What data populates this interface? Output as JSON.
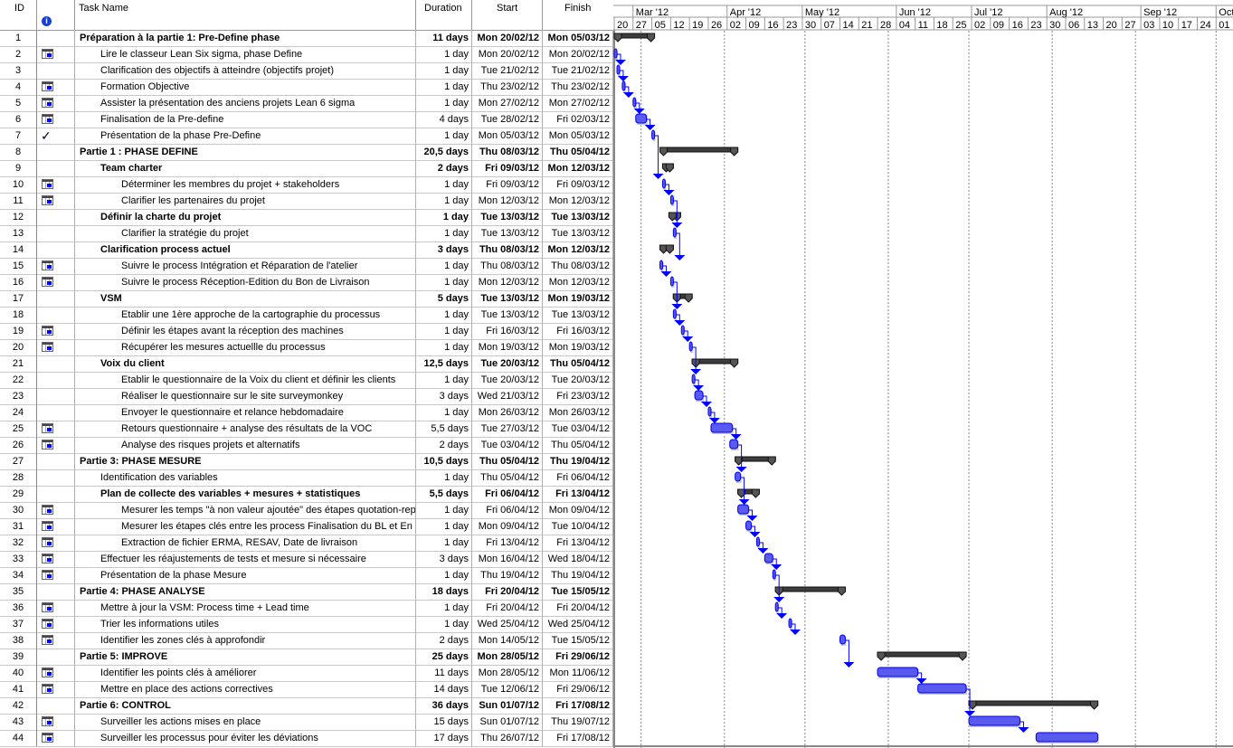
{
  "headers": {
    "id": "ID",
    "info": "i",
    "name": "Task Name",
    "duration": "Duration",
    "start": "Start",
    "finish": "Finish"
  },
  "timescale": {
    "months": [
      "Mar '12",
      "Apr '12",
      "May '12",
      "Jun '12",
      "Jul '12",
      "Aug '12",
      "Sep '12",
      "Oct '"
    ],
    "weeks": [
      "20",
      "27",
      "05",
      "12",
      "19",
      "26",
      "02",
      "09",
      "16",
      "23",
      "30",
      "07",
      "14",
      "21",
      "28",
      "04",
      "11",
      "18",
      "25",
      "02",
      "09",
      "16",
      "23",
      "30",
      "06",
      "13",
      "20",
      "27",
      "03",
      "10",
      "17",
      "24",
      "01"
    ]
  },
  "colors": {
    "task": "#3a3ae8",
    "summary": "#3c3c3c",
    "link": "#0000ff"
  },
  "tasks": [
    {
      "id": "1",
      "icon": "",
      "name": "Préparation à la partie 1: Pre-Define phase",
      "level": 0,
      "summary": true,
      "duration": "11 days",
      "start": "Mon 20/02/12",
      "finish": "Mon 05/03/12"
    },
    {
      "id": "2",
      "icon": "calendar",
      "name": "Lire le classeur Lean Six sigma, phase Define",
      "level": 1,
      "summary": false,
      "duration": "1 day",
      "start": "Mon 20/02/12",
      "finish": "Mon 20/02/12"
    },
    {
      "id": "3",
      "icon": "",
      "name": "Clarification des objectifs à atteindre (objectifs projet)",
      "level": 1,
      "summary": false,
      "duration": "1 day",
      "start": "Tue 21/02/12",
      "finish": "Tue 21/02/12"
    },
    {
      "id": "4",
      "icon": "calendar",
      "name": "Formation Objective",
      "level": 1,
      "summary": false,
      "duration": "1 day",
      "start": "Thu 23/02/12",
      "finish": "Thu 23/02/12"
    },
    {
      "id": "5",
      "icon": "calendar",
      "name": "Assister la présentation des anciens projets Lean 6 sigma",
      "level": 1,
      "summary": false,
      "duration": "1 day",
      "start": "Mon 27/02/12",
      "finish": "Mon 27/02/12"
    },
    {
      "id": "6",
      "icon": "calendar",
      "name": "Finalisation de la Pre-define",
      "level": 1,
      "summary": false,
      "duration": "4 days",
      "start": "Tue 28/02/12",
      "finish": "Fri 02/03/12"
    },
    {
      "id": "7",
      "icon": "check",
      "name": "Présentation de la phase Pre-Define",
      "level": 1,
      "summary": false,
      "duration": "1 day",
      "start": "Mon 05/03/12",
      "finish": "Mon 05/03/12"
    },
    {
      "id": "8",
      "icon": "",
      "name": "Partie 1 : PHASE DEFINE",
      "level": 0,
      "summary": true,
      "duration": "20,5 days",
      "start": "Thu 08/03/12",
      "finish": "Thu 05/04/12"
    },
    {
      "id": "9",
      "icon": "",
      "name": "Team charter",
      "level": 1,
      "summary": true,
      "duration": "2 days",
      "start": "Fri 09/03/12",
      "finish": "Mon 12/03/12"
    },
    {
      "id": "10",
      "icon": "calendar",
      "name": "Déterminer les membres du projet + stakeholders",
      "level": 2,
      "summary": false,
      "duration": "1 day",
      "start": "Fri 09/03/12",
      "finish": "Fri 09/03/12"
    },
    {
      "id": "11",
      "icon": "calendar",
      "name": "Clarifier les partenaires du projet",
      "level": 2,
      "summary": false,
      "duration": "1 day",
      "start": "Mon 12/03/12",
      "finish": "Mon 12/03/12"
    },
    {
      "id": "12",
      "icon": "",
      "name": "Définir la charte du projet",
      "level": 1,
      "summary": true,
      "duration": "1 day",
      "start": "Tue 13/03/12",
      "finish": "Tue 13/03/12"
    },
    {
      "id": "13",
      "icon": "",
      "name": "Clarifier la stratégie du projet",
      "level": 2,
      "summary": false,
      "duration": "1 day",
      "start": "Tue 13/03/12",
      "finish": "Tue 13/03/12"
    },
    {
      "id": "14",
      "icon": "",
      "name": "Clarification process actuel",
      "level": 1,
      "summary": true,
      "duration": "3 days",
      "start": "Thu 08/03/12",
      "finish": "Mon 12/03/12"
    },
    {
      "id": "15",
      "icon": "calendar",
      "name": "Suivre le  process Intégration et Réparation de l'atelier",
      "level": 2,
      "summary": false,
      "duration": "1 day",
      "start": "Thu 08/03/12",
      "finish": "Thu 08/03/12"
    },
    {
      "id": "16",
      "icon": "calendar",
      "name": "Suivre le process Réception-Edition du Bon de Livraison",
      "level": 2,
      "summary": false,
      "duration": "1 day",
      "start": "Mon 12/03/12",
      "finish": "Mon 12/03/12"
    },
    {
      "id": "17",
      "icon": "",
      "name": "VSM",
      "level": 1,
      "summary": true,
      "duration": "5 days",
      "start": "Tue 13/03/12",
      "finish": "Mon 19/03/12"
    },
    {
      "id": "18",
      "icon": "",
      "name": "Etablir une 1ère approche de la cartographie du processus",
      "level": 2,
      "summary": false,
      "duration": "1 day",
      "start": "Tue 13/03/12",
      "finish": "Tue 13/03/12"
    },
    {
      "id": "19",
      "icon": "calendar",
      "name": "Définir les étapes avant la réception des machines",
      "level": 2,
      "summary": false,
      "duration": "1 day",
      "start": "Fri 16/03/12",
      "finish": "Fri 16/03/12"
    },
    {
      "id": "20",
      "icon": "calendar",
      "name": "Récupérer les  mesures actuellle du processus",
      "level": 2,
      "summary": false,
      "duration": "1 day",
      "start": "Mon 19/03/12",
      "finish": "Mon 19/03/12"
    },
    {
      "id": "21",
      "icon": "",
      "name": "Voix du client",
      "level": 1,
      "summary": true,
      "duration": "12,5 days",
      "start": "Tue 20/03/12",
      "finish": "Thu 05/04/12"
    },
    {
      "id": "22",
      "icon": "",
      "name": "Etablir le questionnaire de la Voix du client et définir les clients",
      "level": 2,
      "summary": false,
      "duration": "1 day",
      "start": "Tue 20/03/12",
      "finish": "Tue 20/03/12"
    },
    {
      "id": "23",
      "icon": "",
      "name": "Réaliser le questionnaire sur le site surveymonkey",
      "level": 2,
      "summary": false,
      "duration": "3 days",
      "start": "Wed 21/03/12",
      "finish": "Fri 23/03/12"
    },
    {
      "id": "24",
      "icon": "",
      "name": "Envoyer le questionnaire et relance hebdomadaire",
      "level": 2,
      "summary": false,
      "duration": "1 day",
      "start": "Mon 26/03/12",
      "finish": "Mon 26/03/12"
    },
    {
      "id": "25",
      "icon": "calendar",
      "name": "Retours questionnaire + analyse des résultats de la VOC",
      "level": 2,
      "summary": false,
      "duration": "5,5 days",
      "start": "Tue 27/03/12",
      "finish": "Tue 03/04/12"
    },
    {
      "id": "26",
      "icon": "calendar",
      "name": "Analyse des risques projets et alternatifs",
      "level": 2,
      "summary": false,
      "duration": "2 days",
      "start": "Tue 03/04/12",
      "finish": "Thu 05/04/12"
    },
    {
      "id": "27",
      "icon": "",
      "name": "Partie 3: PHASE MESURE",
      "level": 0,
      "summary": true,
      "duration": "10,5 days",
      "start": "Thu 05/04/12",
      "finish": "Thu 19/04/12"
    },
    {
      "id": "28",
      "icon": "",
      "name": "Identification des variables",
      "level": 1,
      "summary": false,
      "duration": "1 day",
      "start": "Thu 05/04/12",
      "finish": "Fri 06/04/12"
    },
    {
      "id": "29",
      "icon": "",
      "name": "Plan de collecte des variables + mesures + statistiques",
      "level": 1,
      "summary": true,
      "duration": "5,5 days",
      "start": "Fri 06/04/12",
      "finish": "Fri 13/04/12"
    },
    {
      "id": "30",
      "icon": "calendar",
      "name": "Mesurer les temps \"à non valeur ajoutée\" des étapes quotation-rep",
      "level": 2,
      "summary": false,
      "duration": "1 day",
      "start": "Fri 06/04/12",
      "finish": "Mon 09/04/12"
    },
    {
      "id": "31",
      "icon": "calendar",
      "name": "Mesurer les étapes clés entre les process Finalisation du BL et En",
      "level": 2,
      "summary": false,
      "duration": "1 day",
      "start": "Mon 09/04/12",
      "finish": "Tue 10/04/12"
    },
    {
      "id": "32",
      "icon": "calendar",
      "name": "Extraction de fichier ERMA, RESAV, Date de livraison",
      "level": 2,
      "summary": false,
      "duration": "1 day",
      "start": "Fri 13/04/12",
      "finish": "Fri 13/04/12"
    },
    {
      "id": "33",
      "icon": "calendar",
      "name": "Effectuer les réajustements de tests et mesure si nécessaire",
      "level": 1,
      "summary": false,
      "duration": "3 days",
      "start": "Mon 16/04/12",
      "finish": "Wed 18/04/12"
    },
    {
      "id": "34",
      "icon": "calendar",
      "name": "Présentation de la phase Mesure",
      "level": 1,
      "summary": false,
      "duration": "1 day",
      "start": "Thu 19/04/12",
      "finish": "Thu 19/04/12"
    },
    {
      "id": "35",
      "icon": "",
      "name": "Partie 4: PHASE  ANALYSE",
      "level": 0,
      "summary": true,
      "duration": "18 days",
      "start": "Fri 20/04/12",
      "finish": "Tue 15/05/12"
    },
    {
      "id": "36",
      "icon": "calendar",
      "name": "Mettre à jour la VSM: Process time + Lead time",
      "level": 1,
      "summary": false,
      "duration": "1 day",
      "start": "Fri 20/04/12",
      "finish": "Fri 20/04/12"
    },
    {
      "id": "37",
      "icon": "calendar",
      "name": "Trier les informations utiles",
      "level": 1,
      "summary": false,
      "duration": "1 day",
      "start": "Wed 25/04/12",
      "finish": "Wed 25/04/12"
    },
    {
      "id": "38",
      "icon": "calendar",
      "name": "Identifier les zones clés à approfondir",
      "level": 1,
      "summary": false,
      "duration": "2 days",
      "start": "Mon 14/05/12",
      "finish": "Tue 15/05/12"
    },
    {
      "id": "39",
      "icon": "",
      "name": "Partie 5: IMPROVE",
      "level": 0,
      "summary": true,
      "duration": "25 days",
      "start": "Mon 28/05/12",
      "finish": "Fri 29/06/12"
    },
    {
      "id": "40",
      "icon": "calendar",
      "name": "Identifier les points clés à améliorer",
      "level": 1,
      "summary": false,
      "duration": "11 days",
      "start": "Mon 28/05/12",
      "finish": "Mon 11/06/12"
    },
    {
      "id": "41",
      "icon": "calendar",
      "name": "Mettre en place des actions correctives",
      "level": 1,
      "summary": false,
      "duration": "14 days",
      "start": "Tue 12/06/12",
      "finish": "Fri 29/06/12"
    },
    {
      "id": "42",
      "icon": "",
      "name": "Partie 6: CONTROL",
      "level": 0,
      "summary": true,
      "duration": "36 days",
      "start": "Sun 01/07/12",
      "finish": "Fri 17/08/12"
    },
    {
      "id": "43",
      "icon": "calendar",
      "name": "Surveiller les actions mises en place",
      "level": 1,
      "summary": false,
      "duration": "15 days",
      "start": "Sun 01/07/12",
      "finish": "Thu 19/07/12"
    },
    {
      "id": "44",
      "icon": "calendar",
      "name": "Surveiller les processus pour éviter les déviations",
      "level": 1,
      "summary": false,
      "duration": "17 days",
      "start": "Thu 26/07/12",
      "finish": "Fri 17/08/12"
    }
  ]
}
